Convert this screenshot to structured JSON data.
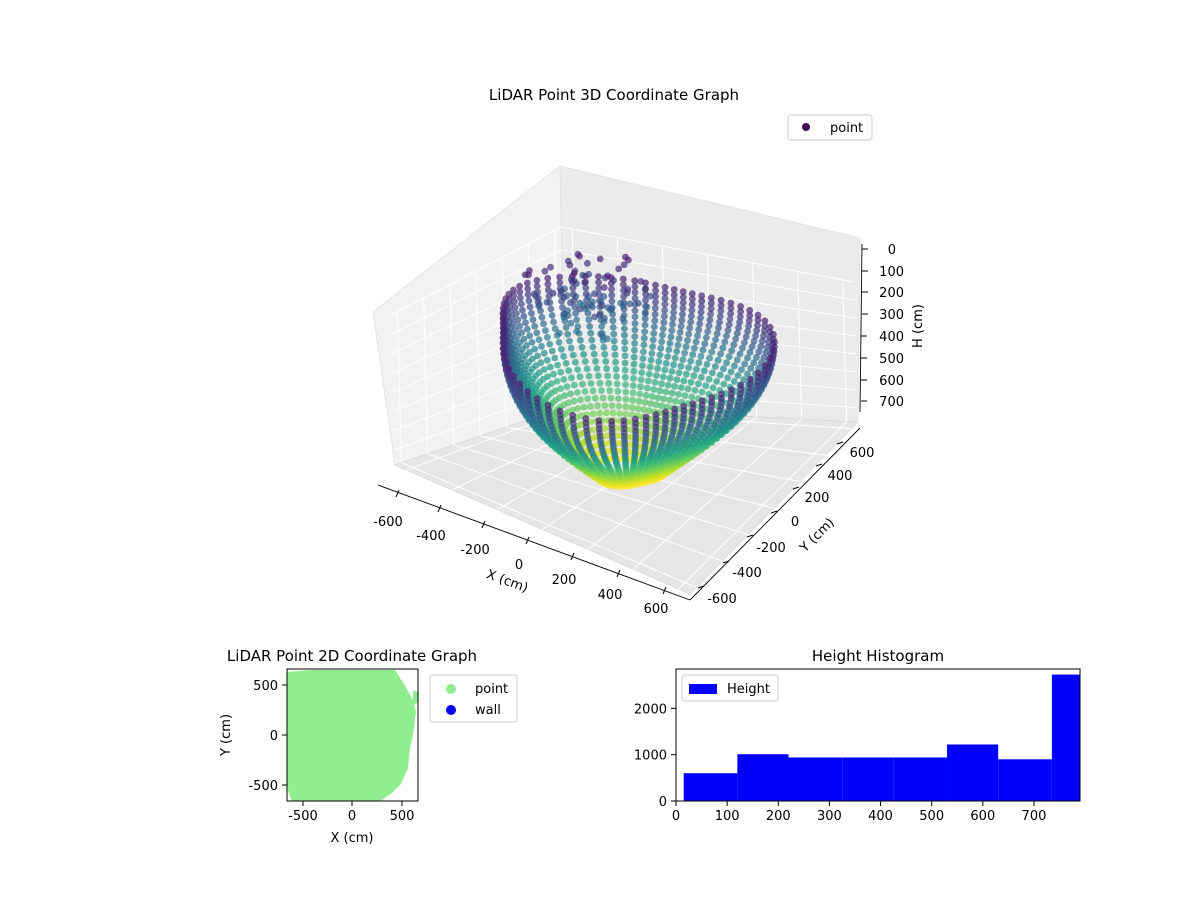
{
  "chart_data": [
    {
      "type": "scatter3d",
      "title": "LiDAR Point 3D Coordinate Graph",
      "xlabel": "X (cm)",
      "ylabel": "Y (cm)",
      "zlabel": "H (cm)",
      "xlim": [
        -650,
        650
      ],
      "ylim": [
        -650,
        650
      ],
      "zlim": [
        0,
        780
      ],
      "z_inverted": true,
      "x_ticks": [
        -600,
        -400,
        -200,
        0,
        200,
        400,
        600
      ],
      "y_ticks": [
        -600,
        -400,
        -200,
        0,
        200,
        400,
        600
      ],
      "z_ticks": [
        0,
        100,
        200,
        300,
        400,
        500,
        600,
        700
      ],
      "grid": true,
      "colormap": "viridis",
      "legend": {
        "placement": "top-right",
        "entries": [
          {
            "label": "point",
            "color": "#440154"
          }
        ]
      },
      "series": [
        {
          "name": "point"
        }
      ]
    },
    {
      "type": "scatter",
      "title": "LiDAR Point 2D Coordinate Graph",
      "xlabel": "X (cm)",
      "ylabel": "Y (cm)",
      "xlim": [
        -650,
        650
      ],
      "ylim": [
        -650,
        650
      ],
      "x_ticks": [
        -500,
        0,
        500
      ],
      "y_ticks": [
        -500,
        0,
        500
      ],
      "legend": {
        "placement": "outside-right",
        "entries": [
          {
            "label": "point",
            "color": "#90ee90"
          },
          {
            "label": "wall",
            "color": "#0000ff"
          }
        ]
      },
      "series": [
        {
          "name": "point",
          "color": "#90ee90"
        },
        {
          "name": "wall",
          "color": "#0000ff"
        }
      ]
    },
    {
      "type": "bar",
      "title": "Height Histogram",
      "xlim": [
        0,
        790
      ],
      "ylim": [
        0,
        2850
      ],
      "x_ticks": [
        0,
        100,
        200,
        300,
        400,
        500,
        600,
        700
      ],
      "y_ticks": [
        0,
        1000,
        2000
      ],
      "legend": {
        "placement": "top-left",
        "entries": [
          {
            "label": "Height",
            "color": "#0000ff"
          }
        ]
      },
      "bins": [
        {
          "x0": 15,
          "x1": 120,
          "count": 600
        },
        {
          "x0": 120,
          "x1": 220,
          "count": 1010
        },
        {
          "x0": 220,
          "x1": 325,
          "count": 940
        },
        {
          "x0": 325,
          "x1": 425,
          "count": 940
        },
        {
          "x0": 425,
          "x1": 530,
          "count": 940
        },
        {
          "x0": 530,
          "x1": 630,
          "count": 1220
        },
        {
          "x0": 630,
          "x1": 735,
          "count": 900
        },
        {
          "x0": 735,
          "x1": 790,
          "count": 2730
        }
      ],
      "series": [
        {
          "name": "Height",
          "color": "#0000ff"
        }
      ]
    }
  ]
}
